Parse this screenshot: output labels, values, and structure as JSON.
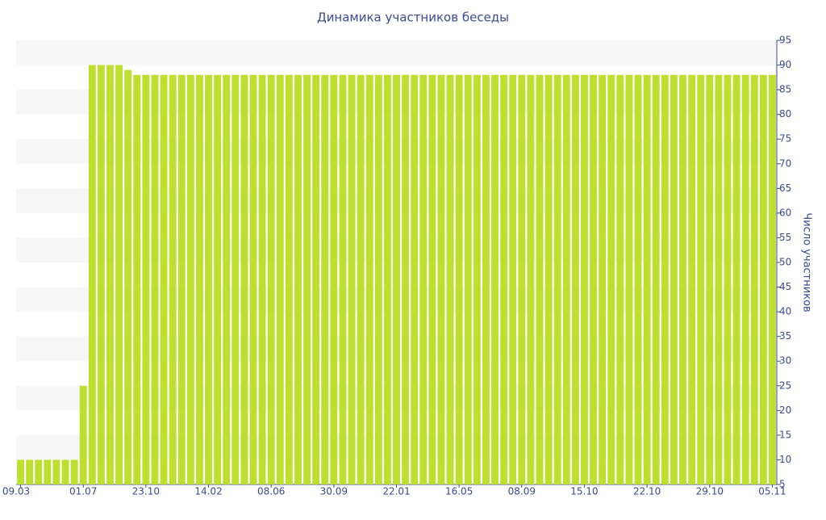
{
  "chart_data": {
    "type": "bar",
    "title": "Динамика участников беседы",
    "y_axis_label": "Число участников",
    "categories": [
      "09.03",
      null,
      null,
      null,
      null,
      null,
      null,
      "01.07",
      null,
      null,
      null,
      null,
      null,
      null,
      "23.10",
      null,
      null,
      null,
      null,
      null,
      null,
      "14.02",
      null,
      null,
      null,
      null,
      null,
      null,
      "08.06",
      null,
      null,
      null,
      null,
      null,
      null,
      "30.09",
      null,
      null,
      null,
      null,
      null,
      null,
      "22.01",
      null,
      null,
      null,
      null,
      null,
      null,
      "16.05",
      null,
      null,
      null,
      null,
      null,
      null,
      "08.09",
      null,
      null,
      null,
      null,
      null,
      null,
      "15.10",
      null,
      null,
      null,
      null,
      null,
      null,
      "22.10",
      null,
      null,
      null,
      null,
      null,
      null,
      "29.10",
      null,
      null,
      null,
      null,
      null,
      null,
      "05.11"
    ],
    "values": [
      10,
      10,
      10,
      10,
      10,
      10,
      10,
      25,
      90,
      90,
      90,
      90,
      89,
      88,
      88,
      88,
      88,
      88,
      88,
      88,
      88,
      88,
      88,
      88,
      88,
      88,
      88,
      88,
      88,
      88,
      88,
      88,
      88,
      88,
      88,
      88,
      88,
      88,
      88,
      88,
      88,
      88,
      88,
      88,
      88,
      88,
      88,
      88,
      88,
      88,
      88,
      88,
      88,
      88,
      88,
      88,
      88,
      88,
      88,
      88,
      88,
      88,
      88,
      88,
      88,
      88,
      88,
      88,
      88,
      88,
      88,
      88,
      88,
      88,
      88,
      88,
      88,
      88,
      88,
      88,
      88,
      88,
      88,
      88,
      88
    ],
    "color": "#bfdf2f",
    "ylim": [
      5,
      95
    ],
    "yticks": [
      5,
      10,
      15,
      20,
      25,
      30,
      35,
      40,
      45,
      50,
      55,
      60,
      65,
      70,
      75,
      80,
      85,
      90,
      95
    ],
    "grid": true
  }
}
